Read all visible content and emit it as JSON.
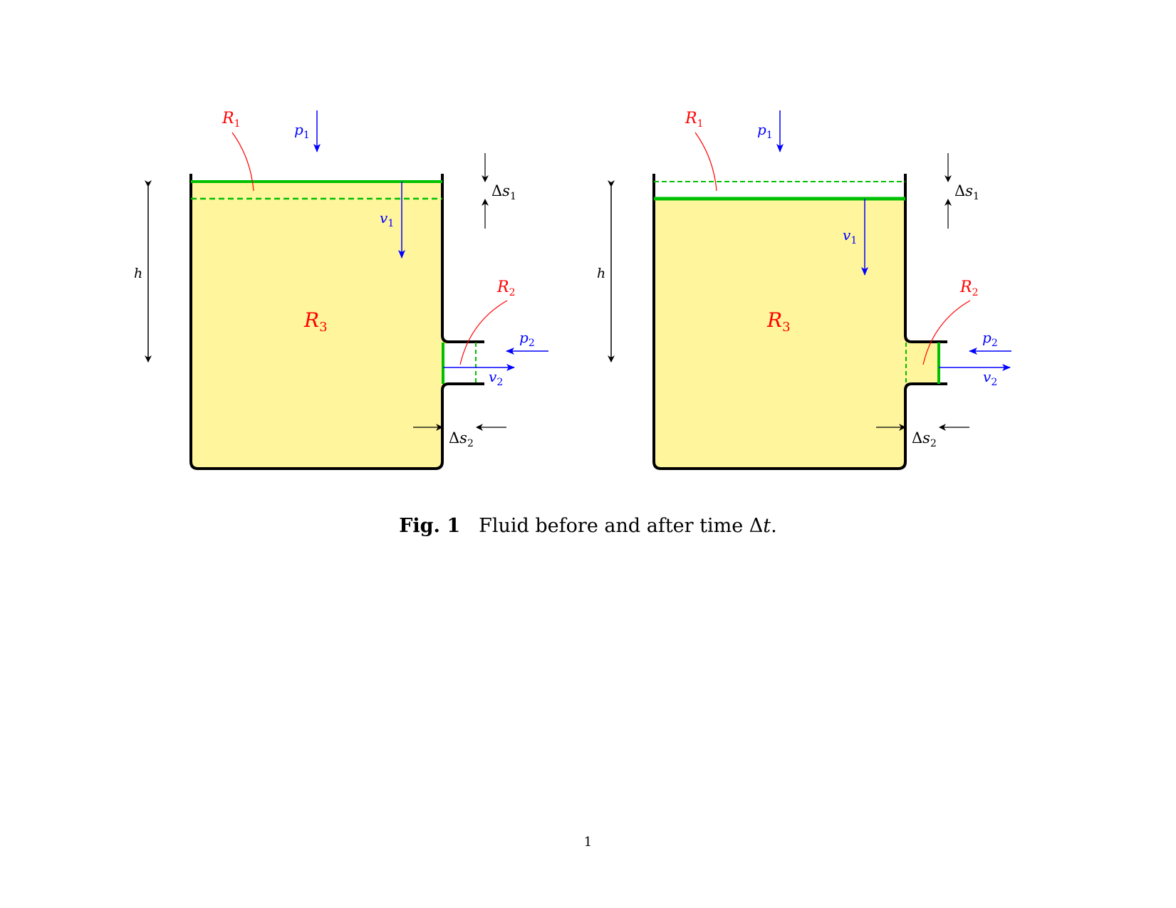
{
  "panels": [
    {
      "state": "before",
      "labels": {
        "R1": {
          "main": "R",
          "sub": "1"
        },
        "R2": {
          "main": "R",
          "sub": "2"
        },
        "R3": {
          "main": "R",
          "sub": "3"
        },
        "p1": {
          "main": "p",
          "sub": "1"
        },
        "p2": {
          "main": "p",
          "sub": "2"
        },
        "v1": {
          "main": "v",
          "sub": "1"
        },
        "v2": {
          "main": "v",
          "sub": "2"
        },
        "ds1": {
          "delta": "Δ",
          "main": "s",
          "sub": "1"
        },
        "ds2": {
          "delta": "Δ",
          "main": "s",
          "sub": "2"
        },
        "h": "h"
      }
    },
    {
      "state": "after",
      "labels": {
        "R1": {
          "main": "R",
          "sub": "1"
        },
        "R2": {
          "main": "R",
          "sub": "2"
        },
        "R3": {
          "main": "R",
          "sub": "3"
        },
        "p1": {
          "main": "p",
          "sub": "1"
        },
        "p2": {
          "main": "p",
          "sub": "2"
        },
        "v1": {
          "main": "v",
          "sub": "1"
        },
        "v2": {
          "main": "v",
          "sub": "2"
        },
        "ds1": {
          "delta": "Δ",
          "main": "s",
          "sub": "1"
        },
        "ds2": {
          "delta": "Δ",
          "main": "s",
          "sub": "2"
        },
        "h": "h"
      }
    }
  ],
  "caption": {
    "label": "Fig. 1",
    "text_prefix": "Fluid before and after time ",
    "delta": "Δ",
    "variable": "t",
    "text_suffix": "."
  },
  "page_number": "1",
  "colors": {
    "fluid": "#fff59d",
    "surface": "#00c000",
    "pressure_velocity": "#0000ff",
    "region_label": "#ff0000",
    "wall": "#000000"
  }
}
